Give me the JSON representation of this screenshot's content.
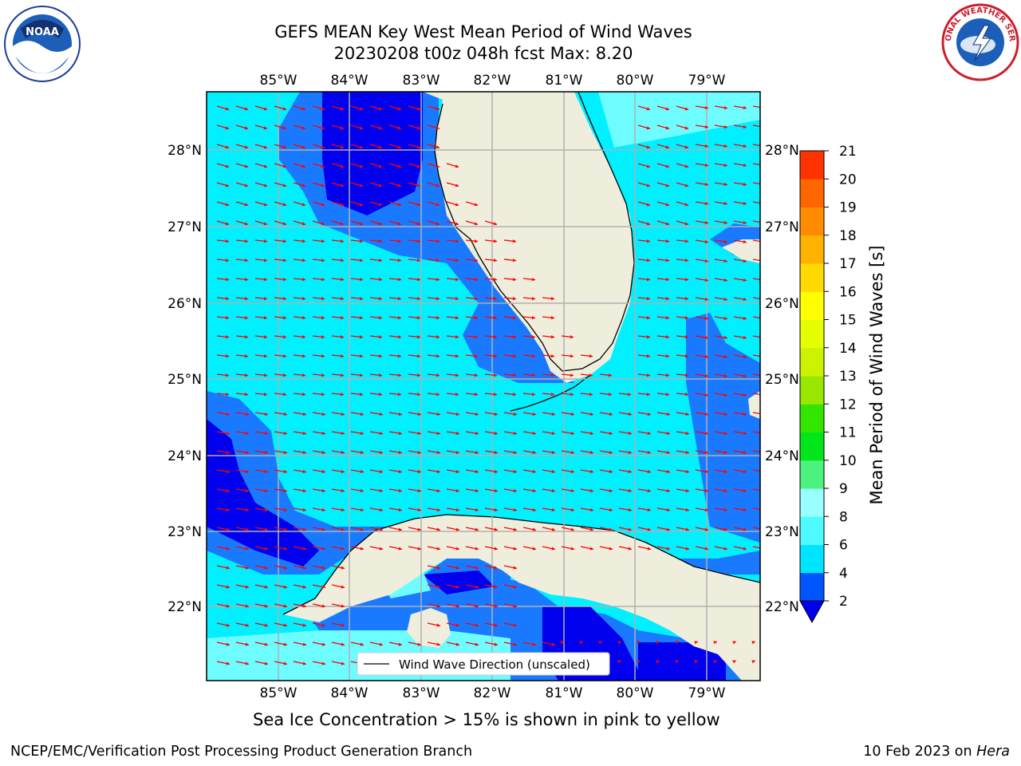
{
  "title": {
    "line1": "GEFS MEAN Key West Mean Period of Wind Waves",
    "line2": "20230208 t00z 048h fcst   Max: 8.20"
  },
  "axes": {
    "lon_labels": [
      "85°W",
      "84°W",
      "83°W",
      "82°W",
      "81°W",
      "80°W",
      "79°W"
    ],
    "lat_labels": [
      "28°N",
      "27°N",
      "26°N",
      "25°N",
      "24°N",
      "23°N",
      "22°N"
    ],
    "lon_range": [
      -86.0,
      -78.3
    ],
    "lat_range": [
      21.06,
      28.76
    ]
  },
  "legend": {
    "label": "Wind Wave Direction (unscaled)",
    "location": "lower-center"
  },
  "colorbar": {
    "label": "Mean Period of Wind Waves [s]",
    "ticks": [
      "2",
      "4",
      "6",
      "8",
      "9",
      "10",
      "11",
      "12",
      "13",
      "14",
      "15",
      "16",
      "17",
      "18",
      "19",
      "20",
      "21"
    ],
    "colors": [
      "#0055ff",
      "#00e5ff",
      "#4dfaff",
      "#99ffff",
      "#4df27e",
      "#00e61a",
      "#33e600",
      "#99e600",
      "#ccf200",
      "#e6ff00",
      "#ffff00",
      "#ffd900",
      "#ffb300",
      "#ff8c00",
      "#ff6600",
      "#ff3300",
      "#ff0000"
    ],
    "extend_color": "#0000ee"
  },
  "colors": {
    "land": "#efeedc",
    "very_short": "#0000ee",
    "short": "#1a7aff",
    "medium": "#00f0ff",
    "long": "#6dfcff",
    "arrow": "#ff0000"
  },
  "captions": {
    "ice_note": "Sea Ice Concentration > 15% is shown in pink to yellow",
    "footer_left": "NCEP/EMC/Verification Post Processing Product Generation Branch",
    "footer_date": "10 Feb 2023 on ",
    "footer_machine": "Hera"
  },
  "logos": {
    "noaa_text": "NOAA",
    "nws_text": "NATIONAL WEATHER SERVICE"
  }
}
